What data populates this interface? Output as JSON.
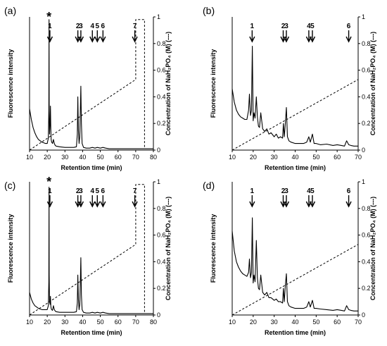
{
  "figure_title": "",
  "chart_data": [
    {
      "type": "line",
      "panel": "(a)",
      "xlabel": "Retention time (min)",
      "ylabel": "Fluorescence intensity",
      "y2label": "Concentration of NaH₂PO₄ (M) (---)",
      "xlim": [
        10,
        80
      ],
      "xticks": [
        10,
        20,
        30,
        40,
        50,
        60,
        70,
        80
      ],
      "y2lim": [
        0,
        1
      ],
      "y2ticks": [
        0,
        0.2,
        0.4,
        0.6,
        0.8,
        1
      ],
      "y2tick_labels": [
        "0",
        "0.2",
        "0.4",
        "0.6",
        "0.8",
        "1"
      ],
      "star_label": "*",
      "star_x": 21,
      "peak_labels": [
        {
          "label": "1",
          "x": 21.5
        },
        {
          "label": "2",
          "x": 37.3
        },
        {
          "label": "3",
          "x": 39.0
        },
        {
          "label": "4",
          "x": 45.5
        },
        {
          "label": "5",
          "x": 48.3
        },
        {
          "label": "6",
          "x": 51.5
        },
        {
          "label": "7",
          "x": 69.5
        }
      ],
      "series": [
        {
          "style": "solid",
          "x": [
            10,
            11,
            12,
            13,
            14,
            15,
            16,
            17,
            18,
            19,
            20,
            20.6,
            20.9,
            21.0,
            21.1,
            21.3,
            21.6,
            21.8,
            22.0,
            22.2,
            22.5,
            23.0,
            23.5,
            24.0,
            24.5,
            25.0,
            27,
            30,
            33,
            35,
            36.5,
            37.0,
            37.3,
            37.6,
            38.0,
            38.4,
            38.8,
            39.0,
            39.3,
            39.7,
            40.5,
            42,
            44,
            45.5,
            47,
            48.3,
            50,
            51.5,
            53,
            55,
            60,
            65,
            70,
            75,
            80
          ],
          "y": [
            0.31,
            0.23,
            0.17,
            0.13,
            0.1,
            0.08,
            0.07,
            0.06,
            0.055,
            0.05,
            0.05,
            0.09,
            0.3,
            0.98,
            0.35,
            0.12,
            0.2,
            0.33,
            0.16,
            0.08,
            0.06,
            0.05,
            0.08,
            0.05,
            0.035,
            0.03,
            0.025,
            0.02,
            0.02,
            0.02,
            0.025,
            0.12,
            0.4,
            0.15,
            0.05,
            0.1,
            0.35,
            0.48,
            0.2,
            0.05,
            0.02,
            0.015,
            0.015,
            0.02,
            0.015,
            0.02,
            0.015,
            0.02,
            0.015,
            0.01,
            0.01,
            0.01,
            0.01,
            0.01,
            0.01
          ]
        },
        {
          "style": "dashed",
          "x": [
            10,
            70,
            70,
            75,
            75
          ],
          "y": [
            0.0,
            0.53,
            0.98,
            0.98,
            0.02
          ]
        }
      ]
    },
    {
      "type": "line",
      "panel": "(b)",
      "xlabel": "Retention time (min)",
      "ylabel": "Fluorescence intensity",
      "y2label": "Concentration of NaH₂PO₄ (M) (---)",
      "xlim": [
        10,
        70
      ],
      "xticks": [
        10,
        20,
        30,
        40,
        50,
        60,
        70
      ],
      "y2lim": [
        0,
        1
      ],
      "y2ticks": [
        0,
        0.2,
        0.4,
        0.6,
        0.8,
        1
      ],
      "y2tick_labels": [
        "0",
        "0.2",
        "0.4",
        "0.6",
        "0.8",
        "1"
      ],
      "peak_labels": [
        {
          "label": "1",
          "x": 19.5
        },
        {
          "label": "2",
          "x": 34.3
        },
        {
          "label": "3",
          "x": 35.8
        },
        {
          "label": "4",
          "x": 46.5
        },
        {
          "label": "5",
          "x": 48.2
        },
        {
          "label": "6",
          "x": 65.5
        }
      ],
      "series": [
        {
          "style": "solid",
          "x": [
            10,
            11,
            12,
            13,
            14,
            15,
            16,
            17,
            17.8,
            18.2,
            18.7,
            19.2,
            19.6,
            20.0,
            20.4,
            20.9,
            21.5,
            22.0,
            22.5,
            23.0,
            23.6,
            24.5,
            25.5,
            26.5,
            27.5,
            28.5,
            30,
            31,
            32,
            33,
            34,
            34.4,
            34.8,
            35.3,
            35.8,
            36.3,
            37,
            38,
            40,
            42,
            44,
            45.5,
            46.5,
            47.2,
            48.2,
            49,
            50,
            52,
            55,
            58,
            60,
            62,
            63.5,
            64.5,
            65.5,
            66.5,
            68,
            70
          ],
          "y": [
            0.46,
            0.36,
            0.3,
            0.27,
            0.25,
            0.24,
            0.23,
            0.23,
            0.3,
            0.42,
            0.26,
            0.3,
            0.78,
            0.22,
            0.28,
            0.24,
            0.4,
            0.25,
            0.18,
            0.17,
            0.28,
            0.16,
            0.14,
            0.16,
            0.12,
            0.13,
            0.1,
            0.12,
            0.09,
            0.1,
            0.09,
            0.2,
            0.1,
            0.2,
            0.32,
            0.1,
            0.07,
            0.06,
            0.05,
            0.05,
            0.05,
            0.06,
            0.1,
            0.06,
            0.12,
            0.05,
            0.05,
            0.04,
            0.045,
            0.035,
            0.04,
            0.035,
            0.03,
            0.07,
            0.04,
            0.035,
            0.03,
            0.03
          ]
        },
        {
          "style": "dashed",
          "x": [
            10,
            70
          ],
          "y": [
            0.0,
            0.53
          ]
        }
      ]
    },
    {
      "type": "line",
      "panel": "(c)",
      "xlabel": "Retention time (min)",
      "ylabel": "Fluorescence intensity",
      "y2label": "Concentration of NaH₂PO₄ (M) (---)",
      "xlim": [
        10,
        80
      ],
      "xticks": [
        10,
        20,
        30,
        40,
        50,
        60,
        70,
        80
      ],
      "y2lim": [
        0,
        1
      ],
      "y2ticks": [
        0,
        0.2,
        0.4,
        0.6,
        0.8,
        1
      ],
      "y2tick_labels": [
        "0",
        "0.2",
        "0.4",
        "0.6",
        "0.8",
        "1"
      ],
      "star_label": "*",
      "star_x": 21,
      "peak_labels": [
        {
          "label": "1",
          "x": 21.5
        },
        {
          "label": "2",
          "x": 37.3
        },
        {
          "label": "3",
          "x": 39.0
        },
        {
          "label": "4",
          "x": 45.5
        },
        {
          "label": "5",
          "x": 48.3
        },
        {
          "label": "6",
          "x": 51.5
        },
        {
          "label": "7",
          "x": 69.5
        }
      ],
      "series": [
        {
          "style": "solid",
          "x": [
            10,
            11,
            12,
            13,
            14,
            15,
            16,
            17,
            18,
            19,
            20,
            20.6,
            20.9,
            21.0,
            21.1,
            21.3,
            21.6,
            21.8,
            22.0,
            22.2,
            22.5,
            23.0,
            23.5,
            24.0,
            24.5,
            25.0,
            27,
            30,
            33,
            35,
            36.5,
            37.0,
            37.3,
            37.6,
            38.0,
            38.4,
            38.8,
            39.0,
            39.3,
            39.7,
            40.5,
            42,
            44,
            45.5,
            47,
            48.3,
            50,
            51.5,
            53,
            55,
            60,
            65,
            70,
            75,
            80
          ],
          "y": [
            0.17,
            0.12,
            0.09,
            0.07,
            0.06,
            0.05,
            0.045,
            0.04,
            0.04,
            0.04,
            0.04,
            0.07,
            0.25,
            0.96,
            0.3,
            0.1,
            0.08,
            0.14,
            0.07,
            0.05,
            0.04,
            0.035,
            0.07,
            0.04,
            0.03,
            0.025,
            0.02,
            0.02,
            0.02,
            0.02,
            0.025,
            0.09,
            0.3,
            0.12,
            0.04,
            0.08,
            0.3,
            0.43,
            0.15,
            0.04,
            0.02,
            0.015,
            0.015,
            0.02,
            0.015,
            0.02,
            0.015,
            0.02,
            0.015,
            0.01,
            0.01,
            0.01,
            0.01,
            0.01,
            0.01
          ]
        },
        {
          "style": "dashed",
          "x": [
            10,
            70,
            70,
            75,
            75
          ],
          "y": [
            0.0,
            0.53,
            0.98,
            0.98,
            0.02
          ]
        }
      ]
    },
    {
      "type": "line",
      "panel": "(d)",
      "xlabel": "Retention time (min)",
      "ylabel": "Fluorescence intensity",
      "y2label": "Concentration of NaH₂PO₄ (M) (---)",
      "xlim": [
        10,
        70
      ],
      "xticks": [
        10,
        20,
        30,
        40,
        50,
        60,
        70
      ],
      "y2lim": [
        0,
        1
      ],
      "y2ticks": [
        0,
        0.2,
        0.4,
        0.6,
        0.8,
        1
      ],
      "y2tick_labels": [
        "0",
        "0.2",
        "0.4",
        "0.6",
        "0.8",
        "1"
      ],
      "peak_labels": [
        {
          "label": "1",
          "x": 19.5
        },
        {
          "label": "2",
          "x": 34.3
        },
        {
          "label": "3",
          "x": 35.8
        },
        {
          "label": "4",
          "x": 46.5
        },
        {
          "label": "5",
          "x": 48.2
        },
        {
          "label": "6",
          "x": 65.5
        }
      ],
      "series": [
        {
          "style": "solid",
          "x": [
            10,
            11,
            12,
            13,
            14,
            15,
            16,
            17,
            17.8,
            18.2,
            18.7,
            19.2,
            19.6,
            20.0,
            20.4,
            20.9,
            21.5,
            22.0,
            22.5,
            23.0,
            23.6,
            24.5,
            25.5,
            26.5,
            27.5,
            28.5,
            30,
            31,
            32,
            33,
            34,
            34.4,
            34.8,
            35.3,
            35.8,
            36.3,
            37,
            38,
            40,
            42,
            44,
            45.5,
            46.5,
            47.2,
            48.2,
            49,
            50,
            52,
            55,
            58,
            60,
            62,
            63.5,
            64.5,
            65.5,
            66.5,
            68,
            70
          ],
          "y": [
            0.63,
            0.48,
            0.4,
            0.36,
            0.33,
            0.31,
            0.3,
            0.29,
            0.32,
            0.42,
            0.28,
            0.32,
            0.73,
            0.24,
            0.3,
            0.25,
            0.56,
            0.28,
            0.2,
            0.19,
            0.3,
            0.17,
            0.15,
            0.17,
            0.13,
            0.13,
            0.11,
            0.12,
            0.1,
            0.1,
            0.09,
            0.2,
            0.1,
            0.22,
            0.31,
            0.1,
            0.07,
            0.06,
            0.05,
            0.05,
            0.05,
            0.06,
            0.1,
            0.06,
            0.11,
            0.05,
            0.05,
            0.045,
            0.04,
            0.035,
            0.04,
            0.035,
            0.03,
            0.07,
            0.04,
            0.035,
            0.03,
            0.03
          ]
        },
        {
          "style": "dashed",
          "x": [
            10,
            70
          ],
          "y": [
            0.0,
            0.53
          ]
        }
      ]
    }
  ]
}
